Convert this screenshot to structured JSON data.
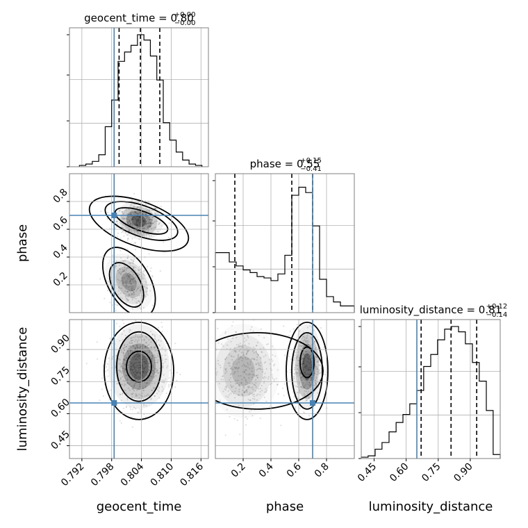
{
  "chart_data": {
    "type": "corner",
    "parameters": [
      {
        "name": "geocent_time",
        "axis_label": "geocent_time",
        "range": [
          0.7895,
          0.8175
        ],
        "ticks": [
          0.792,
          0.798,
          0.804,
          0.81,
          0.816
        ],
        "tick_labels": [
          "0.792",
          "0.798",
          "0.804",
          "0.810",
          "0.816"
        ],
        "truth": 0.7985,
        "median": 0.8038,
        "q16": 0.7995,
        "q84": 0.8077,
        "title": "geocent_time = 0.80",
        "title_sup": "+0.00",
        "title_sub": "−0.00",
        "hist": {
          "edges": [
            0.7915,
            0.7928,
            0.7941,
            0.7954,
            0.7967,
            0.798,
            0.7993,
            0.8006,
            0.8019,
            0.8032,
            0.8045,
            0.8058,
            0.8071,
            0.8084,
            0.8097,
            0.811,
            0.8123,
            0.8136,
            0.8149,
            0.8162
          ],
          "counts": [
            0.01,
            0.02,
            0.04,
            0.09,
            0.3,
            0.5,
            0.79,
            0.86,
            0.91,
            0.99,
            0.95,
            0.83,
            0.65,
            0.33,
            0.2,
            0.11,
            0.05,
            0.02,
            0.01
          ]
        }
      },
      {
        "name": "phase",
        "axis_label": "phase",
        "range": [
          0.0,
          1.0
        ],
        "ticks": [
          0.2,
          0.4,
          0.6,
          0.8
        ],
        "tick_labels": [
          "0.2",
          "0.4",
          "0.6",
          "0.8"
        ],
        "truth": 0.7,
        "median": 0.55,
        "q16": 0.14,
        "q84": 0.7,
        "title": "phase = 0.55",
        "title_sup": "+0.15",
        "title_sub": "−0.41",
        "hist": {
          "edges": [
            0.0,
            0.05,
            0.1,
            0.15,
            0.2,
            0.25,
            0.3,
            0.35,
            0.4,
            0.45,
            0.5,
            0.55,
            0.6,
            0.65,
            0.7,
            0.75,
            0.8,
            0.85,
            0.9,
            0.95,
            1.0
          ],
          "counts": [
            0.45,
            0.45,
            0.38,
            0.35,
            0.32,
            0.3,
            0.27,
            0.26,
            0.24,
            0.29,
            0.43,
            0.88,
            0.94,
            0.9,
            0.65,
            0.25,
            0.12,
            0.08,
            0.05,
            0.05
          ]
        }
      },
      {
        "name": "luminosity_distance",
        "axis_label": "luminosity_distance",
        "range": [
          0.39,
          1.04
        ],
        "ticks": [
          0.45,
          0.6,
          0.75,
          0.9
        ],
        "tick_labels": [
          "0.45",
          "0.60",
          "0.75",
          "0.90"
        ],
        "truth": 0.65,
        "median": 0.81,
        "q16": 0.67,
        "q84": 0.93,
        "title": "luminosity_distance = 0.81",
        "title_sup": "+0.12",
        "title_sub": "−0.14",
        "hist": {
          "edges": [
            0.39,
            0.422,
            0.455,
            0.487,
            0.52,
            0.553,
            0.585,
            0.617,
            0.65,
            0.682,
            0.715,
            0.747,
            0.78,
            0.812,
            0.845,
            0.877,
            0.91,
            0.942,
            0.975,
            1.007,
            1.04
          ],
          "counts": [
            0.01,
            0.02,
            0.07,
            0.12,
            0.2,
            0.27,
            0.33,
            0.41,
            0.51,
            0.69,
            0.78,
            0.89,
            0.97,
            0.99,
            0.95,
            0.86,
            0.72,
            0.58,
            0.36,
            0.03
          ]
        }
      }
    ],
    "panels_2d": [
      {
        "x": "geocent_time",
        "y": "phase"
      },
      {
        "x": "geocent_time",
        "y": "luminosity_distance"
      },
      {
        "x": "phase",
        "y": "luminosity_distance"
      }
    ],
    "grid": true,
    "truth_color": "#4682b4"
  }
}
